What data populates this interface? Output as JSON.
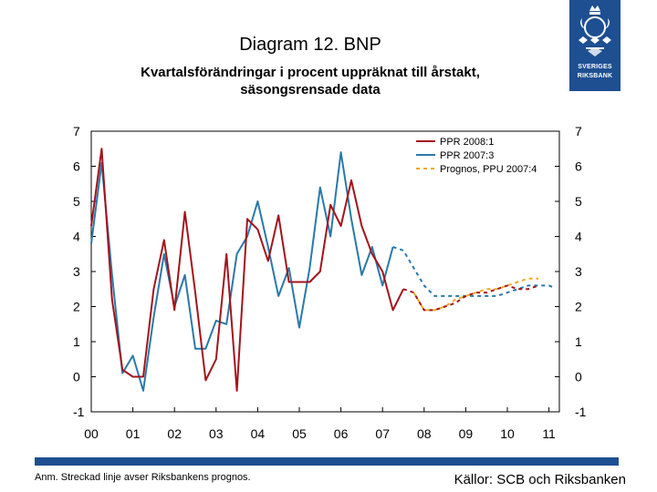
{
  "logo": {
    "line1": "SVERIGES",
    "line2": "RIKSBANK"
  },
  "header": {
    "title": "Diagram 12. BNP",
    "subtitle_line1": "Kvartalsförändringar i procent uppräknat till årstakt,",
    "subtitle_line2": "säsongsrensade data"
  },
  "footer": {
    "note": "Anm. Streckad linje avser Riksbankens prognos.",
    "source": "Källor: SCB och Riksbanken"
  },
  "chart_data": {
    "type": "line",
    "ylim": [
      -1,
      7
    ],
    "yticks": [
      "-1",
      "0",
      "1",
      "2",
      "3",
      "4",
      "5",
      "6",
      "7"
    ],
    "xlim": [
      2000,
      2011.25
    ],
    "xticks": [
      "00",
      "01",
      "02",
      "03",
      "04",
      "05",
      "06",
      "07",
      "08",
      "09",
      "10",
      "11"
    ],
    "grid": false,
    "legend_position": "top-right",
    "series": [
      {
        "name": "PPR 2008:1",
        "color": "#a3131c",
        "style": "solid",
        "x": [
          2000,
          2000.25,
          2000.5,
          2000.75,
          2001,
          2001.25,
          2001.5,
          2001.75,
          2002,
          2002.25,
          2002.5,
          2002.75,
          2003,
          2003.25,
          2003.5,
          2003.75,
          2004,
          2004.25,
          2004.5,
          2004.75,
          2005,
          2005.25,
          2005.5,
          2005.75,
          2006,
          2006.25,
          2006.5,
          2006.75,
          2007,
          2007.25,
          2007.5
        ],
        "y": [
          4.3,
          6.5,
          2.2,
          0.2,
          0.0,
          0.0,
          2.5,
          3.9,
          1.9,
          4.7,
          2.4,
          -0.1,
          0.5,
          3.5,
          -0.4,
          4.5,
          4.2,
          3.3,
          4.6,
          2.7,
          2.7,
          2.7,
          3.0,
          4.9,
          4.3,
          5.6,
          4.3,
          3.5,
          3.0,
          1.9,
          2.5
        ]
      },
      {
        "name": "",
        "color": "#a3131c",
        "style": "dashed",
        "x": [
          2007.5,
          2007.75,
          2008,
          2008.25,
          2008.5,
          2008.75,
          2009,
          2009.25,
          2009.5,
          2009.75,
          2010,
          2010.25,
          2010.5,
          2010.75
        ],
        "y": [
          2.5,
          2.4,
          1.9,
          1.9,
          2.0,
          2.1,
          2.3,
          2.4,
          2.4,
          2.5,
          2.6,
          2.5,
          2.5,
          2.6
        ]
      },
      {
        "name": "PPR 2007:3",
        "color": "#2a79a8",
        "style": "solid",
        "x": [
          2000,
          2000.25,
          2000.5,
          2000.75,
          2001,
          2001.25,
          2001.5,
          2001.75,
          2002,
          2002.25,
          2002.5,
          2002.75,
          2003,
          2003.25,
          2003.5,
          2003.75,
          2004,
          2004.25,
          2004.5,
          2004.75,
          2005,
          2005.25,
          2005.5,
          2005.75,
          2006,
          2006.25,
          2006.5,
          2006.75,
          2007,
          2007.25
        ],
        "y": [
          3.8,
          6.1,
          2.9,
          0.1,
          0.6,
          -0.4,
          1.7,
          3.5,
          2.0,
          2.9,
          0.8,
          0.8,
          1.6,
          1.5,
          3.5,
          4.0,
          5.0,
          3.7,
          2.3,
          3.1,
          1.4,
          3.1,
          5.4,
          4.0,
          6.4,
          4.5,
          2.9,
          3.7,
          2.6,
          3.7
        ]
      },
      {
        "name": "",
        "color": "#2a79a8",
        "style": "dashed",
        "x": [
          2007.25,
          2007.5,
          2007.75,
          2008,
          2008.25,
          2008.5,
          2008.75,
          2009,
          2009.25,
          2009.5,
          2009.75,
          2010,
          2010.25,
          2010.5,
          2010.75,
          2011,
          2011.1
        ],
        "y": [
          3.7,
          3.6,
          3.1,
          2.6,
          2.3,
          2.3,
          2.3,
          2.3,
          2.3,
          2.3,
          2.3,
          2.4,
          2.5,
          2.6,
          2.6,
          2.6,
          2.55
        ]
      },
      {
        "name": "Prognos, PPU 2007:4",
        "color": "#f0a823",
        "style": "dashed",
        "x": [
          2007.75,
          2008,
          2008.25,
          2008.5,
          2008.75,
          2009,
          2009.25,
          2009.5,
          2009.75,
          2010,
          2010.25,
          2010.5,
          2010.75
        ],
        "y": [
          2.4,
          1.9,
          1.9,
          2.0,
          2.2,
          2.3,
          2.4,
          2.5,
          2.5,
          2.6,
          2.7,
          2.8,
          2.8
        ]
      }
    ]
  }
}
